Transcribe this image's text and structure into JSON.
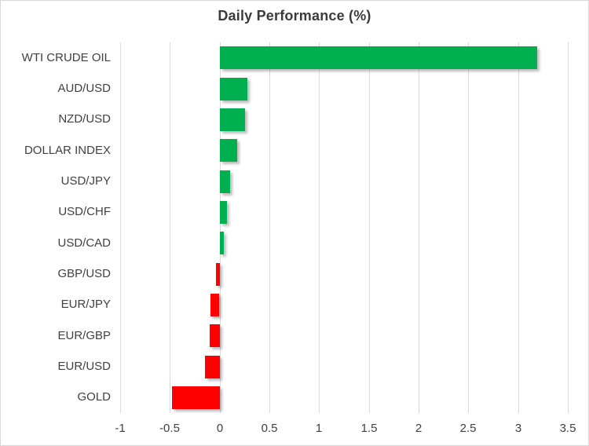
{
  "chart_data": {
    "type": "bar",
    "orientation": "horizontal",
    "title": "Daily Performance (%)",
    "categories": [
      "WTI CRUDE OIL",
      "AUD/USD",
      "NZD/USD",
      "DOLLAR INDEX",
      "USD/JPY",
      "USD/CHF",
      "USD/CAD",
      "GBP/USD",
      "EUR/JPY",
      "EUR/GBP",
      "EUR/USD",
      "GOLD"
    ],
    "values": [
      3.19,
      0.28,
      0.25,
      0.17,
      0.1,
      0.07,
      0.04,
      -0.04,
      -0.09,
      -0.1,
      -0.15,
      -0.48
    ],
    "xlabel": "",
    "ylabel": "",
    "xlim": [
      -1,
      3.5
    ],
    "tick_values": [
      -1,
      -0.5,
      0,
      0.5,
      1,
      1.5,
      2,
      2.5,
      3,
      3.5
    ],
    "tick_labels": [
      "-1",
      "-0.5",
      "0",
      "0.5",
      "1",
      "1.5",
      "2",
      "2.5",
      "3",
      "3.5"
    ],
    "grid": "vertical-only",
    "legend": "none",
    "positive_color": "#00B050",
    "negative_color": "#FF0000",
    "gridline_color": "#d9d9d9",
    "text_color": "#404040"
  }
}
